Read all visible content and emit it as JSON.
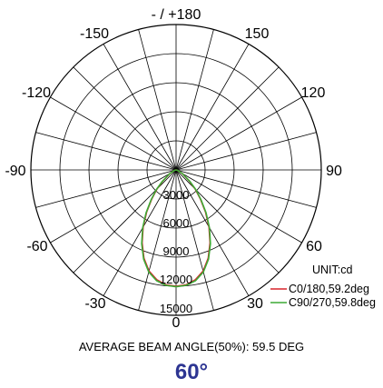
{
  "chart_data": {
    "type": "polar",
    "unit_label": "UNIT:cd",
    "angle_labels": [
      "- / +180",
      "150",
      "-150",
      "120",
      "-120",
      "90",
      "-90",
      "60",
      "-60",
      "30",
      "-30",
      "0"
    ],
    "ring_labels": [
      "3000",
      "6000",
      "9000",
      "12000",
      "15000"
    ],
    "rmax": 15000,
    "series": [
      {
        "name": "C0/180,59.2deg",
        "color": "#d9252b",
        "angles": [
          -90,
          -75,
          -60,
          -50,
          -45,
          -40,
          -35,
          -30,
          -25,
          -20,
          -15,
          -10,
          -5,
          0,
          5,
          10,
          15,
          20,
          25,
          30,
          35,
          40,
          45,
          50,
          60,
          75,
          90
        ],
        "values": [
          0,
          150,
          700,
          1800,
          2800,
          3900,
          5300,
          6800,
          8300,
          9700,
          10800,
          11500,
          11900,
          12000,
          11900,
          11500,
          10800,
          9700,
          8300,
          6800,
          5300,
          3900,
          2800,
          1800,
          700,
          150,
          0
        ]
      },
      {
        "name": "C90/270,59.8deg",
        "color": "#3daa35",
        "angles": [
          -90,
          -75,
          -60,
          -50,
          -45,
          -40,
          -35,
          -30,
          -25,
          -20,
          -15,
          -10,
          -5,
          0,
          5,
          10,
          15,
          20,
          25,
          30,
          35,
          40,
          45,
          50,
          60,
          75,
          90
        ],
        "values": [
          0,
          150,
          750,
          1900,
          2900,
          4000,
          5400,
          6900,
          8400,
          9800,
          10900,
          11600,
          11950,
          12050,
          11950,
          11600,
          10900,
          9800,
          8400,
          6900,
          5400,
          4000,
          2900,
          1900,
          750,
          150,
          0
        ]
      }
    ]
  },
  "caption": "AVERAGE BEAM ANGLE(50%): 59.5 DEG",
  "beam_angle_big": "60°"
}
